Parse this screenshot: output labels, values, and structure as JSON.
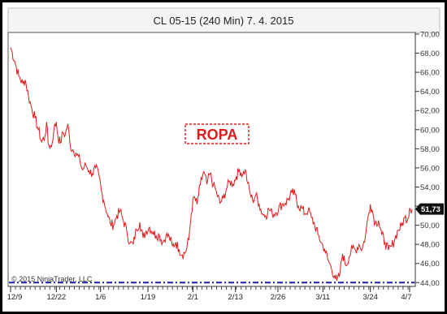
{
  "chart_data": {
    "type": "line",
    "title": "CL 05-15 (240 Min)  7. 4. 2015",
    "copyright": "© 2015 NinjaTrader, LLC",
    "annotation": "ROPA",
    "last_price_label": "51,73",
    "y_axis_position": "right",
    "ylim": [
      43.6,
      70.0
    ],
    "y_ticks": [
      {
        "value": 44,
        "label": "44,00"
      },
      {
        "value": 46,
        "label": "46,00"
      },
      {
        "value": 48,
        "label": "48,00"
      },
      {
        "value": 50,
        "label": "50,00"
      },
      {
        "value": 52,
        "label": "52,00"
      },
      {
        "value": 54,
        "label": "54,00"
      },
      {
        "value": 56,
        "label": "56,00"
      },
      {
        "value": 58,
        "label": "58,00"
      },
      {
        "value": 60,
        "label": "60,00"
      },
      {
        "value": 62,
        "label": "62,00"
      },
      {
        "value": 64,
        "label": "64,00"
      },
      {
        "value": 66,
        "label": "66,00"
      },
      {
        "value": 68,
        "label": "68,00"
      },
      {
        "value": 70,
        "label": "70,00"
      }
    ],
    "x_ticks": [
      {
        "index": 0,
        "label": "12/9"
      },
      {
        "index": 56,
        "label": "12/22"
      },
      {
        "index": 110,
        "label": "1/6"
      },
      {
        "index": 168,
        "label": "1/19"
      },
      {
        "index": 223,
        "label": "2/1"
      },
      {
        "index": 275,
        "label": "2/13"
      },
      {
        "index": 327,
        "label": "2/26"
      },
      {
        "index": 382,
        "label": "3/11"
      },
      {
        "index": 440,
        "label": "3/24"
      },
      {
        "index": 488,
        "label": "4/7"
      }
    ],
    "x_count": 492,
    "support_level": 44.0,
    "colors": {
      "series": "#e11b1b",
      "support": "#1c1ca8",
      "badge": "#111111",
      "annotation": "#e11b1b"
    },
    "series": [
      {
        "anchors": [
          [
            0,
            68.6
          ],
          [
            5,
            67.2
          ],
          [
            10,
            65.6
          ],
          [
            15,
            64.8
          ],
          [
            18,
            65.2
          ],
          [
            22,
            63.5
          ],
          [
            26,
            62.2
          ],
          [
            30,
            61.2
          ],
          [
            34,
            60.0
          ],
          [
            38,
            58.7
          ],
          [
            42,
            59.3
          ],
          [
            44,
            60.8
          ],
          [
            46,
            58.5
          ],
          [
            50,
            58.2
          ],
          [
            53,
            60.0
          ],
          [
            56,
            60.8
          ],
          [
            58,
            59.2
          ],
          [
            61,
            58.6
          ],
          [
            64,
            59.7
          ],
          [
            67,
            59.5
          ],
          [
            70,
            60.6
          ],
          [
            73,
            58.3
          ],
          [
            76,
            57.9
          ],
          [
            80,
            57.6
          ],
          [
            85,
            56.7
          ],
          [
            88,
            55.8
          ],
          [
            92,
            56.3
          ],
          [
            96,
            55.7
          ],
          [
            100,
            55.4
          ],
          [
            104,
            56.0
          ],
          [
            108,
            55.2
          ],
          [
            111,
            53.6
          ],
          [
            114,
            52.6
          ],
          [
            118,
            51.3
          ],
          [
            122,
            50.2
          ],
          [
            126,
            50.0
          ],
          [
            130,
            51.0
          ],
          [
            134,
            51.5
          ],
          [
            138,
            50.5
          ],
          [
            142,
            49.4
          ],
          [
            146,
            48.1
          ],
          [
            150,
            48.0
          ],
          [
            154,
            49.6
          ],
          [
            158,
            50.3
          ],
          [
            162,
            48.7
          ],
          [
            166,
            49.4
          ],
          [
            170,
            49.8
          ],
          [
            174,
            49.3
          ],
          [
            178,
            48.9
          ],
          [
            182,
            49.0
          ],
          [
            186,
            48.2
          ],
          [
            190,
            48.9
          ],
          [
            194,
            48.8
          ],
          [
            198,
            47.8
          ],
          [
            202,
            48.2
          ],
          [
            206,
            47.5
          ],
          [
            210,
            46.9
          ],
          [
            214,
            47.2
          ],
          [
            218,
            48.5
          ],
          [
            221,
            51.2
          ],
          [
            224,
            53.0
          ],
          [
            228,
            52.2
          ],
          [
            232,
            54.2
          ],
          [
            236,
            55.6
          ],
          [
            240,
            54.3
          ],
          [
            244,
            55.4
          ],
          [
            248,
            54.2
          ],
          [
            252,
            53.4
          ],
          [
            256,
            52.3
          ],
          [
            260,
            52.8
          ],
          [
            264,
            53.8
          ],
          [
            268,
            54.6
          ],
          [
            272,
            54.3
          ],
          [
            276,
            55.1
          ],
          [
            280,
            55.8
          ],
          [
            284,
            55.3
          ],
          [
            287,
            55.8
          ],
          [
            290,
            54.4
          ],
          [
            293,
            53.3
          ],
          [
            296,
            52.6
          ],
          [
            300,
            53.2
          ],
          [
            304,
            52.2
          ],
          [
            308,
            51.2
          ],
          [
            312,
            51.0
          ],
          [
            316,
            51.7
          ],
          [
            320,
            51.2
          ],
          [
            324,
            51.3
          ],
          [
            328,
            51.8
          ],
          [
            332,
            52.2
          ],
          [
            336,
            52.3
          ],
          [
            340,
            52.8
          ],
          [
            344,
            53.4
          ],
          [
            348,
            53.2
          ],
          [
            352,
            52.0
          ],
          [
            356,
            51.8
          ],
          [
            360,
            51.2
          ],
          [
            364,
            51.6
          ],
          [
            368,
            50.8
          ],
          [
            372,
            50.0
          ],
          [
            376,
            49.0
          ],
          [
            380,
            48.2
          ],
          [
            384,
            47.5
          ],
          [
            388,
            46.4
          ],
          [
            392,
            45.6
          ],
          [
            396,
            44.7
          ],
          [
            399,
            44.2
          ],
          [
            402,
            44.6
          ],
          [
            406,
            47.0
          ],
          [
            410,
            45.8
          ],
          [
            414,
            46.7
          ],
          [
            418,
            47.6
          ],
          [
            422,
            47.4
          ],
          [
            426,
            48.0
          ],
          [
            430,
            47.5
          ],
          [
            434,
            48.9
          ],
          [
            437,
            50.8
          ],
          [
            440,
            52.2
          ],
          [
            443,
            51.3
          ],
          [
            446,
            50.2
          ],
          [
            450,
            50.5
          ],
          [
            454,
            49.0
          ],
          [
            458,
            48.2
          ],
          [
            462,
            47.4
          ],
          [
            466,
            47.8
          ],
          [
            470,
            48.6
          ],
          [
            474,
            49.5
          ],
          [
            478,
            49.9
          ],
          [
            482,
            50.8
          ],
          [
            486,
            50.7
          ],
          [
            488,
            51.8
          ],
          [
            491,
            51.7
          ]
        ]
      }
    ]
  }
}
